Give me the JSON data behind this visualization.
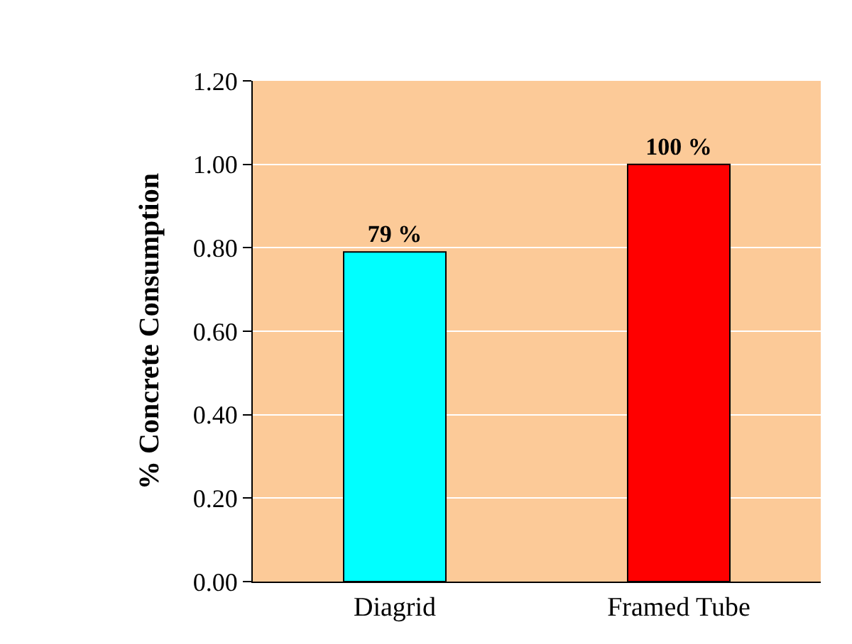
{
  "chart_data": {
    "type": "bar",
    "ylabel": "% Concrete Consumption",
    "categories": [
      "Diagrid",
      "Framed Tube"
    ],
    "values": [
      0.79,
      1.0
    ],
    "colors": [
      "#00ffff",
      "#ff0000"
    ],
    "value_labels": [
      "79 %",
      "100 %"
    ],
    "ylim": [
      0,
      1.2
    ],
    "yticks": [
      {
        "value": 0,
        "label": "0.00"
      },
      {
        "value": 0.2,
        "label": "0.20"
      },
      {
        "value": 0.4,
        "label": "0.40"
      },
      {
        "value": 0.6,
        "label": "0.60"
      },
      {
        "value": 0.8,
        "label": "0.80"
      },
      {
        "value": 1.0,
        "label": "1.00"
      },
      {
        "value": 1.2,
        "label": "1.20"
      }
    ],
    "grid": "y"
  }
}
